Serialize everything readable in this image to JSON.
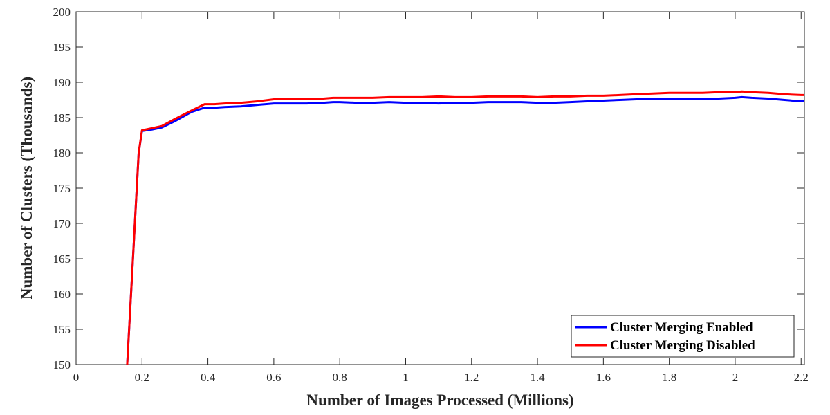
{
  "chart_data": {
    "type": "line",
    "xlabel": "Number of Images Processed (Millions)",
    "ylabel": "Number of Clusters (Thousands)",
    "xlim": [
      0,
      2.21
    ],
    "ylim": [
      150,
      200
    ],
    "xticks": [
      0,
      0.2,
      0.4,
      0.6,
      0.8,
      1,
      1.2,
      1.4,
      1.6,
      1.8,
      2,
      2.2
    ],
    "xtick_labels": [
      "0",
      "0.2",
      "0.4",
      "0.6",
      "0.8",
      "1",
      "1.2",
      "1.4",
      "1.6",
      "1.8",
      "2",
      "2.2"
    ],
    "yticks": [
      150,
      155,
      160,
      165,
      170,
      175,
      180,
      185,
      190,
      195,
      200
    ],
    "ytick_labels": [
      "150",
      "155",
      "160",
      "165",
      "170",
      "175",
      "180",
      "185",
      "190",
      "195",
      "200"
    ],
    "grid": false,
    "legend_position": "bottom-right",
    "series": [
      {
        "name": "Cluster Merging Enabled",
        "color": "#0000ff",
        "x": [
          0.155,
          0.19,
          0.2,
          0.23,
          0.26,
          0.3,
          0.35,
          0.39,
          0.42,
          0.45,
          0.5,
          0.55,
          0.6,
          0.65,
          0.7,
          0.75,
          0.78,
          0.8,
          0.85,
          0.9,
          0.95,
          1.0,
          1.05,
          1.1,
          1.15,
          1.2,
          1.25,
          1.3,
          1.35,
          1.4,
          1.45,
          1.5,
          1.55,
          1.6,
          1.65,
          1.7,
          1.75,
          1.8,
          1.85,
          1.9,
          1.95,
          2.0,
          2.02,
          2.05,
          2.1,
          2.15,
          2.2,
          2.21
        ],
        "y": [
          150,
          180,
          183.1,
          183.3,
          183.6,
          184.5,
          185.8,
          186.4,
          186.4,
          186.5,
          186.6,
          186.8,
          187.0,
          187.0,
          187.0,
          187.1,
          187.2,
          187.2,
          187.1,
          187.1,
          187.2,
          187.1,
          187.1,
          187.0,
          187.1,
          187.1,
          187.2,
          187.2,
          187.2,
          187.1,
          187.1,
          187.2,
          187.3,
          187.4,
          187.5,
          187.6,
          187.6,
          187.7,
          187.6,
          187.6,
          187.7,
          187.8,
          187.9,
          187.8,
          187.7,
          187.5,
          187.3,
          187.3
        ]
      },
      {
        "name": "Cluster Merging Disabled",
        "color": "#ff0000",
        "x": [
          0.155,
          0.19,
          0.2,
          0.23,
          0.26,
          0.3,
          0.35,
          0.39,
          0.42,
          0.45,
          0.5,
          0.55,
          0.6,
          0.65,
          0.7,
          0.75,
          0.78,
          0.8,
          0.85,
          0.9,
          0.95,
          1.0,
          1.05,
          1.1,
          1.15,
          1.2,
          1.25,
          1.3,
          1.35,
          1.4,
          1.45,
          1.5,
          1.55,
          1.6,
          1.65,
          1.7,
          1.75,
          1.8,
          1.85,
          1.9,
          1.95,
          2.0,
          2.02,
          2.05,
          2.1,
          2.15,
          2.2,
          2.21
        ],
        "y": [
          150,
          180,
          183.2,
          183.5,
          183.8,
          184.8,
          186.0,
          186.9,
          186.9,
          187.0,
          187.1,
          187.3,
          187.6,
          187.6,
          187.6,
          187.7,
          187.8,
          187.8,
          187.8,
          187.8,
          187.9,
          187.9,
          187.9,
          188.0,
          187.9,
          187.9,
          188.0,
          188.0,
          188.0,
          187.9,
          188.0,
          188.0,
          188.1,
          188.1,
          188.2,
          188.3,
          188.4,
          188.5,
          188.5,
          188.5,
          188.6,
          188.6,
          188.7,
          188.6,
          188.5,
          188.3,
          188.2,
          188.2
        ]
      }
    ]
  }
}
